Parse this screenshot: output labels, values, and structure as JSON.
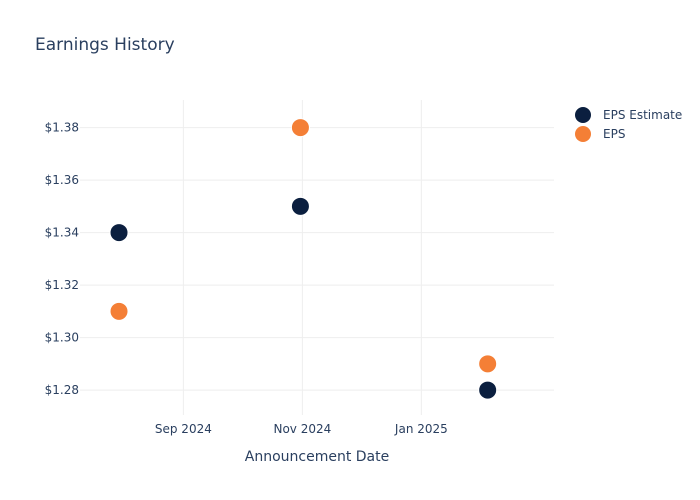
{
  "chart_data": {
    "type": "scatter",
    "title": "Earnings History",
    "xlabel": "Announcement Date",
    "ylabel": "",
    "x_axis_type": "date",
    "xlim": [
      "2024-07-10",
      "2025-03-10"
    ],
    "ylim": [
      1.2705,
      1.3905
    ],
    "x_ticks": [
      {
        "value": "2024-09-01",
        "label": "Sep 2024"
      },
      {
        "value": "2024-11-01",
        "label": "Nov 2024"
      },
      {
        "value": "2025-01-01",
        "label": "Jan 2025"
      }
    ],
    "y_ticks": [
      {
        "value": 1.28,
        "label": "$1.28"
      },
      {
        "value": 1.3,
        "label": "$1.30"
      },
      {
        "value": 1.32,
        "label": "$1.32"
      },
      {
        "value": 1.34,
        "label": "$1.34"
      },
      {
        "value": 1.36,
        "label": "$1.36"
      },
      {
        "value": 1.38,
        "label": "$1.38"
      }
    ],
    "grid": true,
    "legend_position": "top-right",
    "series": [
      {
        "name": "EPS Estimate",
        "color": "#0b1f3f",
        "points": [
          {
            "x": "2024-07-30",
            "y": 1.34
          },
          {
            "x": "2024-10-31",
            "y": 1.35
          },
          {
            "x": "2025-02-04",
            "y": 1.28
          }
        ]
      },
      {
        "name": "EPS",
        "color": "#f47f36",
        "points": [
          {
            "x": "2024-07-30",
            "y": 1.31
          },
          {
            "x": "2024-10-31",
            "y": 1.38
          },
          {
            "x": "2025-02-04",
            "y": 1.29
          }
        ]
      }
    ]
  }
}
